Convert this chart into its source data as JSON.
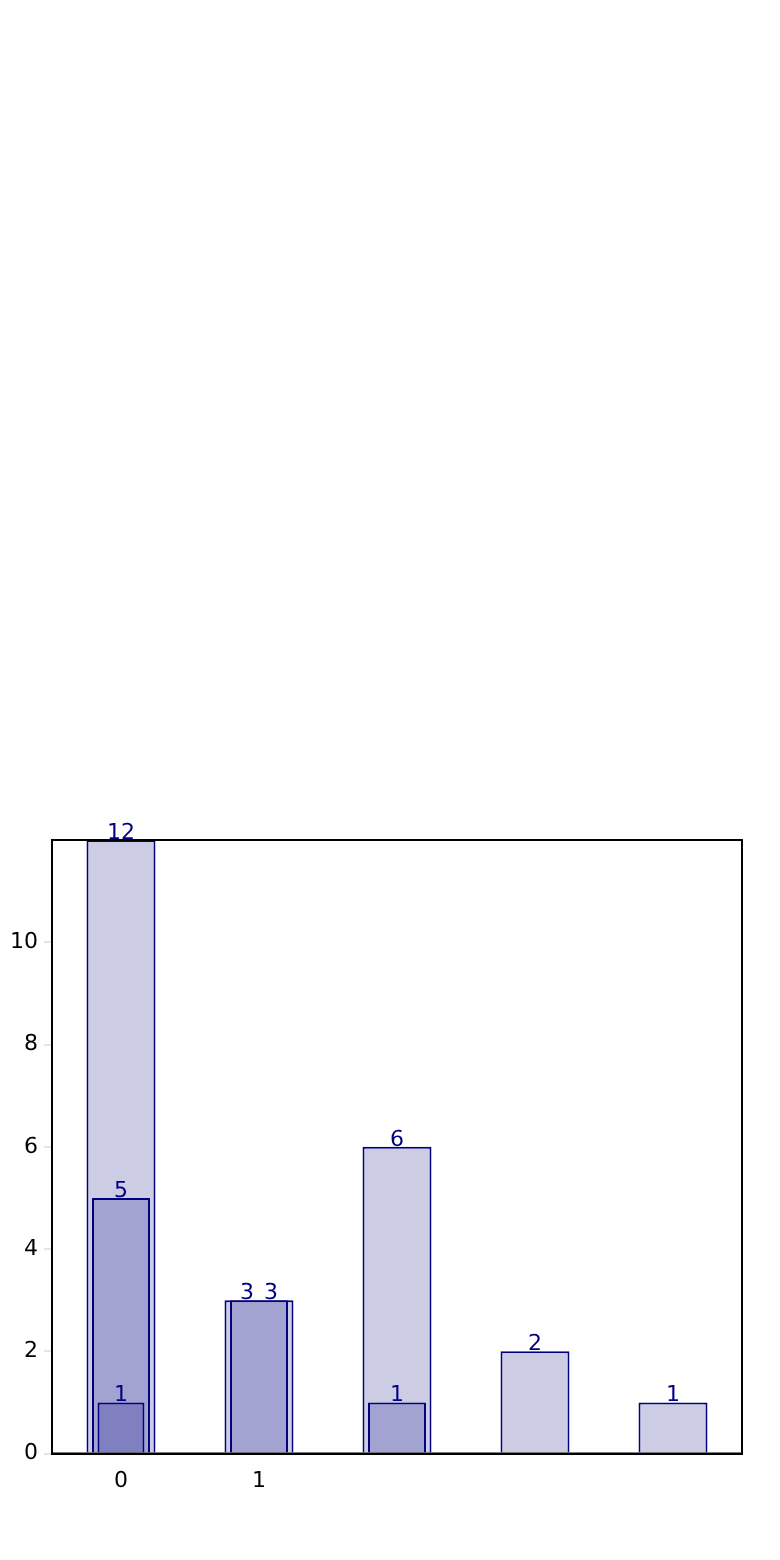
{
  "chart_data": {
    "type": "bar",
    "categories": [
      "0",
      "1",
      null,
      null,
      null
    ],
    "series": [
      {
        "color": "#ccccE5",
        "values": [
          12,
          3,
          6,
          2,
          1
        ]
      },
      {
        "color": "#a3a3d1",
        "values": [
          5,
          3,
          1,
          null,
          null
        ]
      },
      {
        "color": "#8080c0",
        "values": [
          1,
          null,
          null,
          null,
          null
        ]
      }
    ],
    "ylim": [
      0,
      12
    ],
    "yticks": [
      0,
      2,
      4,
      6,
      8,
      10
    ],
    "grid": false,
    "legend": false,
    "data_labels": true
  }
}
